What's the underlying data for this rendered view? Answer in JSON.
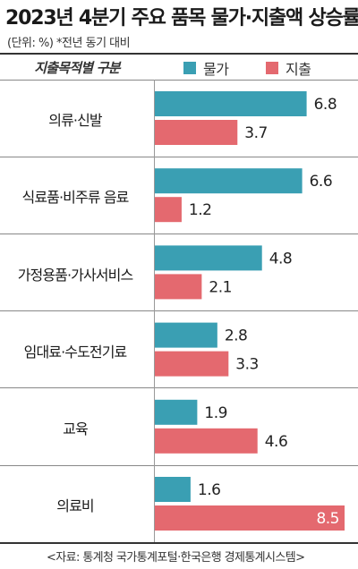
{
  "title": "2023년 4분기 주요 품목 물가·지출액 상승률",
  "subtitle": "(단위: %) *전년 동기 대비",
  "column_header": "지출목적별 구분",
  "footer": "<자료: 통계청 국가통계포털·한국은행 경제통계시스템>",
  "colors": {
    "price": "#3a9fb3",
    "spending": "#e4696f",
    "text": "#222222"
  },
  "chart_data": {
    "type": "bar",
    "orientation": "horizontal",
    "title": "2023년 4분기 주요 품목 물가·지출액 상승률",
    "subtitle": "(단위: %) *전년 동기 대비",
    "xlim": [
      0,
      8.5
    ],
    "legend_position": "top",
    "categories": [
      "의류·신발",
      "식료품·비주류 음료",
      "가정용품·가사서비스",
      "임대료·수도전기료",
      "교육",
      "의료비"
    ],
    "series": [
      {
        "name": "물가",
        "color": "#3a9fb3",
        "values": [
          6.8,
          6.6,
          4.8,
          2.8,
          1.9,
          1.6
        ]
      },
      {
        "name": "지출",
        "color": "#e4696f",
        "values": [
          3.7,
          1.2,
          2.1,
          3.3,
          4.6,
          8.5
        ]
      }
    ],
    "value_labels": [
      [
        "6.8",
        "6.6",
        "4.8",
        "2.8",
        "1.9",
        "1.6"
      ],
      [
        "3.7",
        "1.2",
        "2.1",
        "3.3",
        "4.6",
        "8.5"
      ]
    ]
  }
}
